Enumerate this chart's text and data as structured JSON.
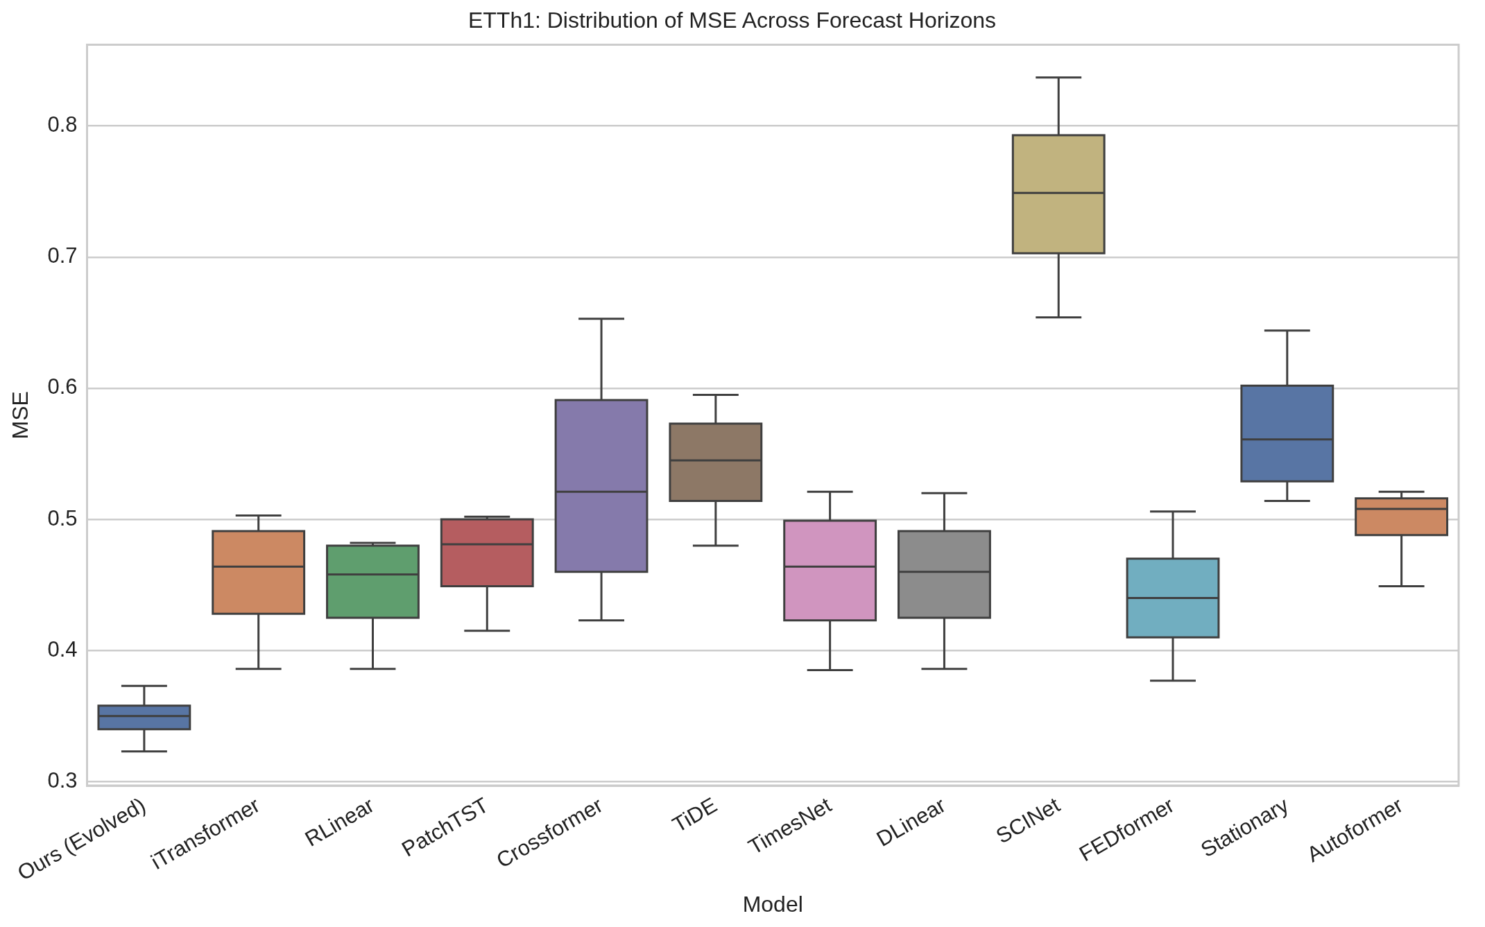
{
  "chart_data": {
    "type": "box",
    "title": "ETTh1: Distribution of MSE Across Forecast Horizons",
    "xlabel": "Model",
    "ylabel": "MSE",
    "categories": [
      "Ours (Evolved)",
      "iTransformer",
      "RLinear",
      "PatchTST",
      "Crossformer",
      "TiDE",
      "TimesNet",
      "DLinear",
      "SCINet",
      "FEDformer",
      "Stationary",
      "Autoformer"
    ],
    "colors": [
      "#5875a4",
      "#cc8963",
      "#5f9e6e",
      "#b55d60",
      "#857aab",
      "#8d7866",
      "#d095bf",
      "#8c8c8c",
      "#c1b37f",
      "#71aec0",
      "#5875a4",
      "#cc8963"
    ],
    "boxes": [
      {
        "low": 0.323,
        "q1": 0.34,
        "median": 0.35,
        "q3": 0.358,
        "high": 0.373
      },
      {
        "low": 0.386,
        "q1": 0.428,
        "median": 0.464,
        "q3": 0.491,
        "high": 0.503
      },
      {
        "low": 0.386,
        "q1": 0.425,
        "median": 0.458,
        "q3": 0.48,
        "high": 0.482
      },
      {
        "low": 0.415,
        "q1": 0.449,
        "median": 0.481,
        "q3": 0.5,
        "high": 0.502
      },
      {
        "low": 0.423,
        "q1": 0.46,
        "median": 0.521,
        "q3": 0.591,
        "high": 0.653
      },
      {
        "low": 0.48,
        "q1": 0.514,
        "median": 0.545,
        "q3": 0.573,
        "high": 0.595
      },
      {
        "low": 0.385,
        "q1": 0.423,
        "median": 0.464,
        "q3": 0.499,
        "high": 0.521
      },
      {
        "low": 0.386,
        "q1": 0.425,
        "median": 0.46,
        "q3": 0.491,
        "high": 0.52
      },
      {
        "low": 0.654,
        "q1": 0.703,
        "median": 0.749,
        "q3": 0.793,
        "high": 0.837
      },
      {
        "low": 0.377,
        "q1": 0.41,
        "median": 0.44,
        "q3": 0.47,
        "high": 0.506
      },
      {
        "low": 0.514,
        "q1": 0.529,
        "median": 0.561,
        "q3": 0.602,
        "high": 0.644
      },
      {
        "low": 0.449,
        "q1": 0.488,
        "median": 0.508,
        "q3": 0.516,
        "high": 0.521
      }
    ],
    "ylim": [
      0.297,
      0.862
    ],
    "yticks": [
      0.3,
      0.4,
      0.5,
      0.6,
      0.7,
      0.8
    ],
    "grid": "y",
    "legend": false
  }
}
